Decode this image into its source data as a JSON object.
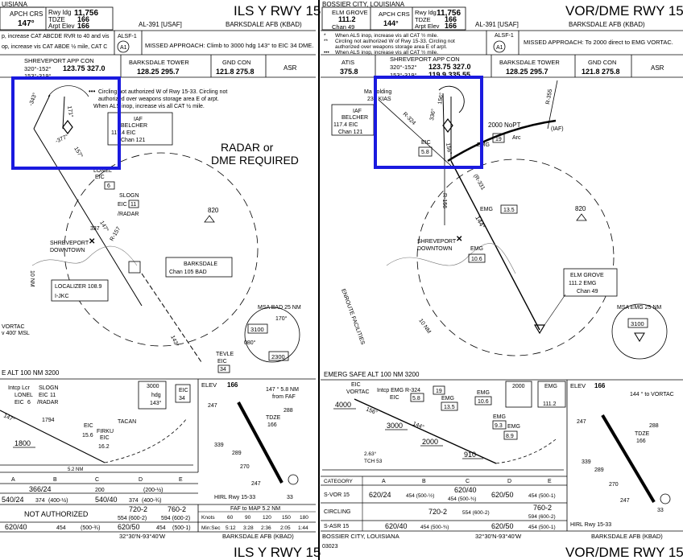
{
  "left": {
    "loc_top": "UISIANA",
    "title": "ILS Y RWY 15",
    "apch_crs_label": "APCH CRS",
    "apch_crs": "147°",
    "rwy_ldg_label": "Rwy ldg",
    "rwy_ldg": "11,756",
    "tdze_label": "TDZE",
    "tdze": "166",
    "arpt_elev_label": "Arpt Elev",
    "arpt_elev": "166",
    "al_num": "AL-391 [USAF]",
    "airport": "BARKSDALE AFB (KBAD)",
    "note1": "p, increase CAT ABCDE RVR to 40 and vis",
    "note2": "op, increase vis CAT ABDE ½ mile, CAT C",
    "alsf": "ALSF-1",
    "missed": "MISSED APPROACH: Climb to 3000 hdg 143° to EIC 34 DME.",
    "app_con_label": "SHREVEPORT APP CON",
    "app_con_radials": "320°-152°",
    "app_con_freq": "123.75 327.0",
    "app_con_radials2": "153°-319°",
    "twr_label": "BARKSDALE TOWER",
    "twr_freq": "128.25 295.7",
    "gnd_label": "GND CON",
    "gnd_freq": "121.8 275.8",
    "asr": "ASR",
    "circ_note1": "Circling not authorized W of Rwy 15-33. Circling not",
    "circ_note2": "authorized over weapons storage area E of arpt.",
    "circ_note3": "When ALS inop, increase vis all CAT ½ mile.",
    "iaf": "IAF",
    "belcher": "BELCHER",
    "belcher_freq": "117.4 EIC",
    "belcher_chan": "Chan 121",
    "radar_req1": "RADAR or",
    "radar_req2": "DME REQUIRED",
    "lonel": "LONEL",
    "lonel_eic": "EIC",
    "lonel_dme": "6",
    "slogn": "SLOGN",
    "slogn_eic": "EIC",
    "slogn_dme": "11",
    "slogn_radar": "/RADAR",
    "alt_820": "820",
    "alt_337": "337",
    "shreveport": "SHREVEPORT",
    "downtown": "DOWNTOWN",
    "barksdale_box": "BARKSDALE",
    "barksdale_chan": "Chan 105 BAD",
    "loc_label": "LOCALIZER 108.9",
    "loc_id": "I-JKC",
    "nm10": "10 NM",
    "vortac": "VORTAC",
    "vortac_alt": "v 400' MSL",
    "msa_label": "MSA BAD 25 NM",
    "msa1": "3100",
    "msa2": "2300",
    "msa_deg1": "170°",
    "msa_deg2": "080°",
    "tevle": "TEVLE",
    "tevle_eic": "EIC",
    "tevle_dme": "34",
    "safe_alt": "E ALT 100 NM 3200",
    "crs_147": "147°",
    "crs_157": "157°",
    "crs_343": "-343°",
    "crs_377": "-377°",
    "crs_171": "171°",
    "crs_r157": "R-157",
    "crs_143": "143°",
    "prof_intcp": "Intcp Lcr",
    "prof_lonel": "LONEL",
    "prof_eic6": "EIC",
    "prof_6": "6",
    "prof_slogn": "SLOGN",
    "prof_eic11": "EIC",
    "prof_11": "11",
    "prof_radar": "/RADAR",
    "prof_147": "147°",
    "prof_1794": "1794",
    "prof_1800": "1800",
    "prof_eic156": "EIC",
    "prof_156": "15.6",
    "prof_firku": "FIRKU",
    "prof_eic162": "EIC",
    "prof_162": "16.2",
    "prof_tacan": "TACAN",
    "prof_gs": "5.2 NM",
    "prof_3000": "3000",
    "prof_hdg": "hdg",
    "prof_143": "143°",
    "prof_eic34": "EIC",
    "prof_34": "34",
    "elev_label": "ELEV",
    "elev": "166",
    "ad_note": "147 ° 5.8 NM",
    "ad_note2": "from FAF",
    "ad_247a": "247",
    "ad_247b": "247",
    "ad_288": "288",
    "ad_tdze": "TDZE",
    "ad_tdze_val": "166",
    "ad_339": "339",
    "ad_289": "289",
    "ad_270": "270",
    "ad_hirl": "HIRL Rwy 15-33",
    "ad_33": "33",
    "min_headers": [
      "A",
      "B",
      "C",
      "D",
      "E"
    ],
    "min_row1": [
      "366/24",
      "",
      "200",
      "(200-½)"
    ],
    "min_row2": [
      "540/24",
      "374",
      "(400-½)",
      "540/40",
      "374",
      "(400-¾)"
    ],
    "min_row3_na": "NOT AUTHORIZED",
    "min_row3_c": "720-2",
    "min_row3_c2": "554 (600-2)",
    "min_row3_d": "760-2",
    "min_row3_d2": "594 (600-2)",
    "min_row4": [
      "620/40",
      "454",
      "(500-¾)",
      "620/50",
      "454",
      "(500-1)"
    ],
    "faf_label": "FAF to MAP 5.2 NM",
    "knots_label": "Knots",
    "knots": [
      "60",
      "90",
      "120",
      "150",
      "180"
    ],
    "minsec_label": "Min:Sec",
    "minsec": [
      "5:12",
      "3:28",
      "2:36",
      "2:05",
      "1:44"
    ],
    "bottom_coords": "32°30'N-93°40'W",
    "bottom_airport": "BARKSDALE AFB (KBAD)",
    "bottom_title": "ILS Y RWY 15"
  },
  "right": {
    "loc_top": "BOSSIER CITY, LOUISIANA",
    "title": "VOR/DME RWY 15",
    "elm_label": "ELM GROVE",
    "elm_freq": "111.2",
    "elm_chan": "Chan 49",
    "apch_crs_label": "APCH CRS",
    "apch_crs": "144°",
    "rwy_ldg_label": "Rwy ldg",
    "rwy_ldg": "11,756",
    "tdze_label": "TDZE",
    "tdze": "166",
    "arpt_elev_label": "Arpt Elev",
    "arpt_elev": "166",
    "al_num": "AL-391 [USAF]",
    "airport": "BARKSDALE AFB (KBAD)",
    "note1": "When ALS inop, increase vis all CAT ½ mile.",
    "note2": "Circling not authorized W of Rwy 15-33. Circling not",
    "note3": "authorized over weapons storage area E of arpt.",
    "note4": "When ALS inop, increase vis all CAT ½ mile.",
    "alsf": "ALSF-1",
    "missed": "MISSED APPROACH: To 2000 direct to EMG VORTAC.",
    "atis_label": "ATIS",
    "atis_freq": "375.8",
    "app_con_label": "SHREVEPORT APP CON",
    "app_con_radials": "320°-152°",
    "app_con_freq": "123.75 327.0",
    "app_con_radials2": "153°-319°",
    "app_con_freq2": "119.9 335.55",
    "twr_label": "BARKSDALE TOWER",
    "twr_freq": "128.25 295.7",
    "gnd_label": "GND CON",
    "gnd_freq": "121.8 275.8",
    "asr": "ASR",
    "hold1": "Ma holding",
    "hold2": "230 KIAS",
    "iaf": "IAF",
    "belcher": "BELCHER",
    "belcher_freq": "117.4 EIC",
    "belcher_chan": "Chan 121",
    "eic": "EIC",
    "eic_dme": "5.8",
    "crs_r324": "R-324",
    "crs_156": "156°",
    "crs_336": "336°",
    "crs_156b": "156°",
    "crs_r156": "R-156",
    "crs_r331": "(R-331",
    "crs_r355": "R-355",
    "crs_144": "144°",
    "nopt": "2000 NoPT",
    "emg_arc": "EMG",
    "arc_dme": "19",
    "arc": "Arc",
    "iaf2": "(IAF)",
    "emg1": "EMG",
    "emg1_dme": "13.5",
    "alt_820": "820",
    "shreveport": "SHREVEPORT",
    "downtown": "DOWNTOWN",
    "emg2": "EMG",
    "emg2_dme": "10.6",
    "elm_box": "ELM GROVE",
    "elm_box_freq": "111.2 EMG",
    "elm_box_chan": "Chan 49",
    "enroute": "ENROUTE FACILITIES",
    "nm10": "10 NM",
    "msa_label": "MSA EMG 25 NM",
    "msa1": "3100",
    "safe_alt": "EMERG SAFE ALT 100 NM 3200",
    "prof_eic": "EIC",
    "prof_vortac": "VORTAC",
    "prof_4000": "4000",
    "prof_156": "156°",
    "prof_intcp": "Intcp EMG R-324",
    "prof_19": "19",
    "prof_eic58": "EIC",
    "prof_58": "5.8",
    "prof_emg135": "EMG",
    "prof_135": "13.5",
    "prof_emg106": "EMG",
    "prof_106": "10.6",
    "prof_3000": "3000",
    "prof_144": "144°",
    "prof_2000": "2000",
    "prof_emg93": "EMG",
    "prof_93": "9.3",
    "prof_emg89": "EMG",
    "prof_89": "8.9",
    "prof_910": "910",
    "prof_263": "2.63°",
    "prof_tch": "TCH 53",
    "prof_box2000": "2000",
    "prof_box_emg": "EMG",
    "prof_box_freq": "111.2",
    "elev_label": "ELEV",
    "elev": "166",
    "ad_note": "144 ° to VORTAC",
    "ad_247": "247",
    "ad_288": "288",
    "ad_tdze": "TDZE",
    "ad_tdze_val": "166",
    "ad_339": "339",
    "ad_289": "289",
    "ad_270": "270",
    "ad_247b": "247",
    "ad_hirl": "HIRL Rwy 15-33",
    "ad_33": "33",
    "cat_label": "CATEGORY",
    "min_headers": [
      "A",
      "B",
      "C",
      "D",
      "E"
    ],
    "svor_label": "S-VOR 15",
    "svor_ab": "620/24",
    "svor_ab2": "454 (500-½)",
    "svor_c": "620/40",
    "svor_c2": "454 (500-¾)",
    "svor_de": "620/50",
    "svor_de2": "454 (500-1)",
    "circ_label": "CIRCLING",
    "circ_abc": "720-2",
    "circ_abc2": "554 (600-2)",
    "circ_d": "760-2",
    "circ_d2": "594 (600-2)",
    "sasr_label": "S-ASR 15",
    "sasr": "620/40",
    "sasr2": "454 (500-¾)",
    "sasr_de": "620/50",
    "sasr_de2": "454 (500-1)",
    "bottom_loc": "BOSSIER CITY, LOUISIANA",
    "bottom_coords": "32°30'N-93°40'W",
    "bottom_airport": "BARKSDALE AFB (KBAD)",
    "bottom_code": "03023",
    "bottom_title": "VOR/DME RWY 15"
  },
  "highlight_color": "#1a1adf"
}
